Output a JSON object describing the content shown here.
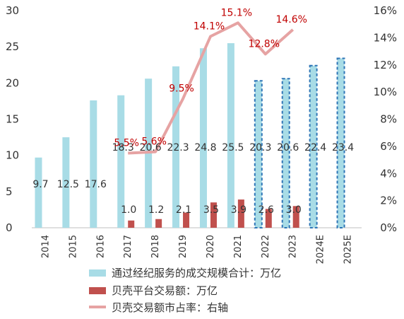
{
  "chart_data": {
    "type": "bar",
    "categories": [
      "2014",
      "2015",
      "2016",
      "2017",
      "2018",
      "2019",
      "2020",
      "2021",
      "2022",
      "2023",
      "2024E",
      "2025E"
    ],
    "projected_categories": [
      "2022",
      "2023",
      "2024E",
      "2025E"
    ],
    "series": [
      {
        "name": "通过经纪服务的成交规模合计：万亿",
        "type": "bar",
        "axis": "left",
        "color": "#a8dce6",
        "values": [
          9.7,
          12.5,
          17.6,
          18.3,
          20.6,
          22.3,
          24.8,
          25.5,
          20.3,
          20.6,
          22.4,
          23.4
        ],
        "labels": [
          "9.7",
          "12.5",
          "17.6",
          "18.3",
          "20.6",
          "22.3",
          "24.8",
          "25.5",
          "20.3",
          "20.6",
          "22.4",
          "23.4"
        ]
      },
      {
        "name": "贝壳平台交易额：万亿",
        "type": "bar",
        "axis": "left",
        "color": "#c0504d",
        "values": [
          null,
          null,
          null,
          1.0,
          1.2,
          2.1,
          3.5,
          3.9,
          2.6,
          3.0,
          null,
          null
        ],
        "labels": [
          "",
          "",
          "",
          "1.0",
          "1.2",
          "2.1",
          "3.5",
          "3.9",
          "2.6",
          "3.0",
          "",
          ""
        ]
      },
      {
        "name": "贝壳交易额市占率：右轴",
        "type": "line",
        "axis": "right",
        "color": "#e6a3a3",
        "values": [
          null,
          null,
          null,
          5.5,
          5.6,
          9.5,
          14.1,
          15.1,
          12.8,
          14.6,
          null,
          null
        ],
        "labels": [
          "",
          "",
          "",
          "5.5%",
          "5.6%",
          "9.5%",
          "14.1%",
          "15.1%",
          "12.8%",
          "14.6%",
          "",
          ""
        ]
      }
    ],
    "y_left": {
      "min": 0,
      "max": 30,
      "ticks": [
        "0",
        "5",
        "10",
        "15",
        "20",
        "25",
        "30"
      ]
    },
    "y_right": {
      "min": 0,
      "max": 16,
      "ticks": [
        "0%",
        "2%",
        "4%",
        "6%",
        "8%",
        "10%",
        "12%",
        "14%",
        "16%"
      ]
    },
    "grid": false,
    "legend_position": "bottom"
  }
}
